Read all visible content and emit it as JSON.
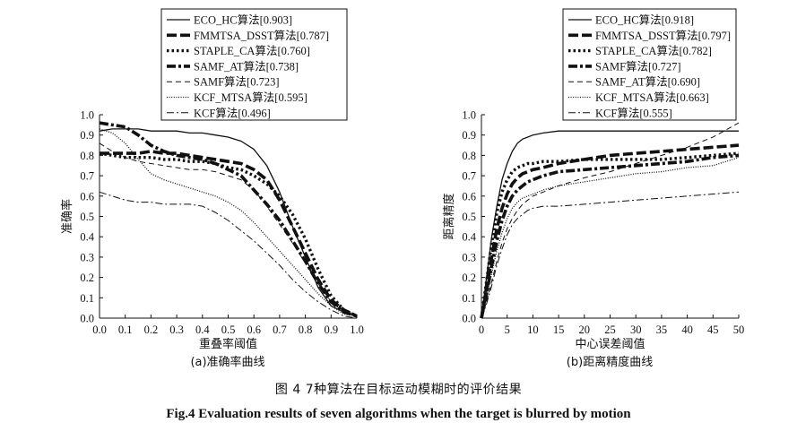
{
  "figure": {
    "caption_cn": "图 4   7种算法在目标运动模糊时的评价结果",
    "caption_en": "Fig.4   Evaluation results of seven algorithms when the target is blurred by motion"
  },
  "chart_data": [
    {
      "type": "line",
      "subtitle": "(a)准确率曲线",
      "xlabel": "重叠率阈值",
      "ylabel": "准确率",
      "xlim": [
        0,
        1
      ],
      "ylim": [
        0,
        1
      ],
      "xticks": [
        "0.0",
        "0.1",
        "0.2",
        "0.3",
        "0.4",
        "0.5",
        "0.6",
        "0.7",
        "0.8",
        "0.9",
        "1.0"
      ],
      "yticks": [
        "0.0",
        "0.1",
        "0.2",
        "0.3",
        "0.4",
        "0.5",
        "0.6",
        "0.7",
        "0.8",
        "0.9",
        "1.0"
      ],
      "grid": false,
      "legend_position": "top",
      "x": [
        0,
        0.05,
        0.1,
        0.15,
        0.2,
        0.25,
        0.3,
        0.35,
        0.4,
        0.45,
        0.5,
        0.55,
        0.6,
        0.65,
        0.7,
        0.75,
        0.8,
        0.85,
        0.9,
        0.95,
        1.0
      ],
      "series": [
        {
          "name": "ECO_HC算法[0.903]",
          "style": "solid",
          "values": [
            0.92,
            0.93,
            0.93,
            0.93,
            0.92,
            0.92,
            0.92,
            0.91,
            0.91,
            0.9,
            0.89,
            0.87,
            0.83,
            0.75,
            0.62,
            0.45,
            0.3,
            0.15,
            0.06,
            0.03,
            0.01
          ]
        },
        {
          "name": "FMMTSA_DSST算法[0.787]",
          "style": "long-dash",
          "values": [
            0.81,
            0.81,
            0.81,
            0.81,
            0.82,
            0.81,
            0.81,
            0.8,
            0.79,
            0.78,
            0.77,
            0.76,
            0.73,
            0.68,
            0.58,
            0.45,
            0.32,
            0.19,
            0.09,
            0.04,
            0.01
          ]
        },
        {
          "name": "STAPLE_CA算法[0.760]",
          "style": "dotted",
          "values": [
            0.81,
            0.8,
            0.79,
            0.79,
            0.79,
            0.78,
            0.78,
            0.77,
            0.77,
            0.76,
            0.74,
            0.73,
            0.7,
            0.66,
            0.6,
            0.51,
            0.39,
            0.24,
            0.11,
            0.04,
            0.01
          ]
        },
        {
          "name": "SAMF_AT算法[0.738]",
          "style": "dash-dot",
          "values": [
            0.96,
            0.95,
            0.94,
            0.9,
            0.85,
            0.82,
            0.8,
            0.79,
            0.78,
            0.76,
            0.73,
            0.7,
            0.63,
            0.56,
            0.48,
            0.38,
            0.28,
            0.17,
            0.08,
            0.03,
            0.01
          ]
        },
        {
          "name": "SAMF算法[0.723]",
          "style": "thin-dash",
          "values": [
            0.86,
            0.82,
            0.79,
            0.77,
            0.76,
            0.75,
            0.74,
            0.73,
            0.73,
            0.72,
            0.7,
            0.68,
            0.63,
            0.55,
            0.46,
            0.37,
            0.27,
            0.17,
            0.08,
            0.03,
            0.01
          ]
        },
        {
          "name": "KCF_MTSA算法[0.595]",
          "style": "fine-dot",
          "values": [
            0.93,
            0.91,
            0.86,
            0.78,
            0.71,
            0.68,
            0.66,
            0.64,
            0.62,
            0.6,
            0.57,
            0.53,
            0.47,
            0.4,
            0.33,
            0.26,
            0.19,
            0.12,
            0.06,
            0.02,
            0.01
          ]
        },
        {
          "name": "KCF算法[0.496]",
          "style": "thin-dash-dot",
          "values": [
            0.62,
            0.6,
            0.58,
            0.57,
            0.57,
            0.56,
            0.56,
            0.56,
            0.55,
            0.52,
            0.48,
            0.43,
            0.38,
            0.32,
            0.26,
            0.19,
            0.13,
            0.08,
            0.04,
            0.01,
            0.0
          ]
        }
      ]
    },
    {
      "type": "line",
      "subtitle": "(b)距离精度曲线",
      "xlabel": "中心误差阈值",
      "ylabel": "距离精度",
      "xlim": [
        0,
        50
      ],
      "ylim": [
        0,
        1
      ],
      "xticks": [
        "0",
        "5",
        "10",
        "15",
        "20",
        "25",
        "30",
        "35",
        "40",
        "45",
        "50"
      ],
      "yticks": [
        "0.0",
        "0.1",
        "0.2",
        "0.3",
        "0.4",
        "0.5",
        "0.6",
        "0.7",
        "0.8",
        "0.9",
        "1.0"
      ],
      "grid": false,
      "legend_position": "top",
      "x": [
        0,
        1,
        2,
        3,
        4,
        5,
        6,
        7,
        8,
        9,
        10,
        12,
        15,
        20,
        25,
        30,
        35,
        40,
        45,
        50
      ],
      "series": [
        {
          "name": "ECO_HC算法[0.918]",
          "style": "solid",
          "values": [
            0.0,
            0.2,
            0.4,
            0.55,
            0.68,
            0.76,
            0.82,
            0.86,
            0.88,
            0.89,
            0.9,
            0.91,
            0.92,
            0.92,
            0.92,
            0.92,
            0.92,
            0.92,
            0.92,
            0.92
          ]
        },
        {
          "name": "FMMTSA_DSST算法[0.797]",
          "style": "long-dash",
          "values": [
            0.0,
            0.14,
            0.3,
            0.44,
            0.54,
            0.61,
            0.66,
            0.69,
            0.71,
            0.72,
            0.73,
            0.74,
            0.76,
            0.78,
            0.8,
            0.81,
            0.82,
            0.83,
            0.84,
            0.85
          ]
        },
        {
          "name": "STAPLE_CA算法[0.782]",
          "style": "dotted",
          "values": [
            0.0,
            0.18,
            0.37,
            0.52,
            0.62,
            0.68,
            0.72,
            0.74,
            0.75,
            0.76,
            0.76,
            0.77,
            0.77,
            0.78,
            0.78,
            0.78,
            0.78,
            0.79,
            0.8,
            0.81
          ]
        },
        {
          "name": "SAMF算法[0.727]",
          "style": "dash-dot",
          "values": [
            0.0,
            0.12,
            0.26,
            0.38,
            0.48,
            0.55,
            0.6,
            0.63,
            0.65,
            0.67,
            0.68,
            0.7,
            0.72,
            0.73,
            0.74,
            0.75,
            0.76,
            0.77,
            0.79,
            0.8
          ]
        },
        {
          "name": "SAMF_AT算法[0.690]",
          "style": "thin-dash",
          "values": [
            0.0,
            0.08,
            0.18,
            0.28,
            0.37,
            0.44,
            0.49,
            0.53,
            0.56,
            0.58,
            0.6,
            0.62,
            0.65,
            0.69,
            0.72,
            0.76,
            0.8,
            0.84,
            0.89,
            0.96
          ]
        },
        {
          "name": "KCF_MTSA算法[0.663]",
          "style": "fine-dot",
          "values": [
            0.0,
            0.1,
            0.22,
            0.33,
            0.42,
            0.49,
            0.54,
            0.57,
            0.59,
            0.6,
            0.61,
            0.63,
            0.65,
            0.67,
            0.69,
            0.71,
            0.72,
            0.74,
            0.75,
            0.79
          ]
        },
        {
          "name": "KCF算法[0.555]",
          "style": "thin-dash-dot",
          "values": [
            0.0,
            0.07,
            0.16,
            0.26,
            0.34,
            0.41,
            0.46,
            0.49,
            0.51,
            0.53,
            0.54,
            0.55,
            0.55,
            0.56,
            0.57,
            0.58,
            0.59,
            0.6,
            0.61,
            0.62
          ]
        }
      ]
    }
  ]
}
